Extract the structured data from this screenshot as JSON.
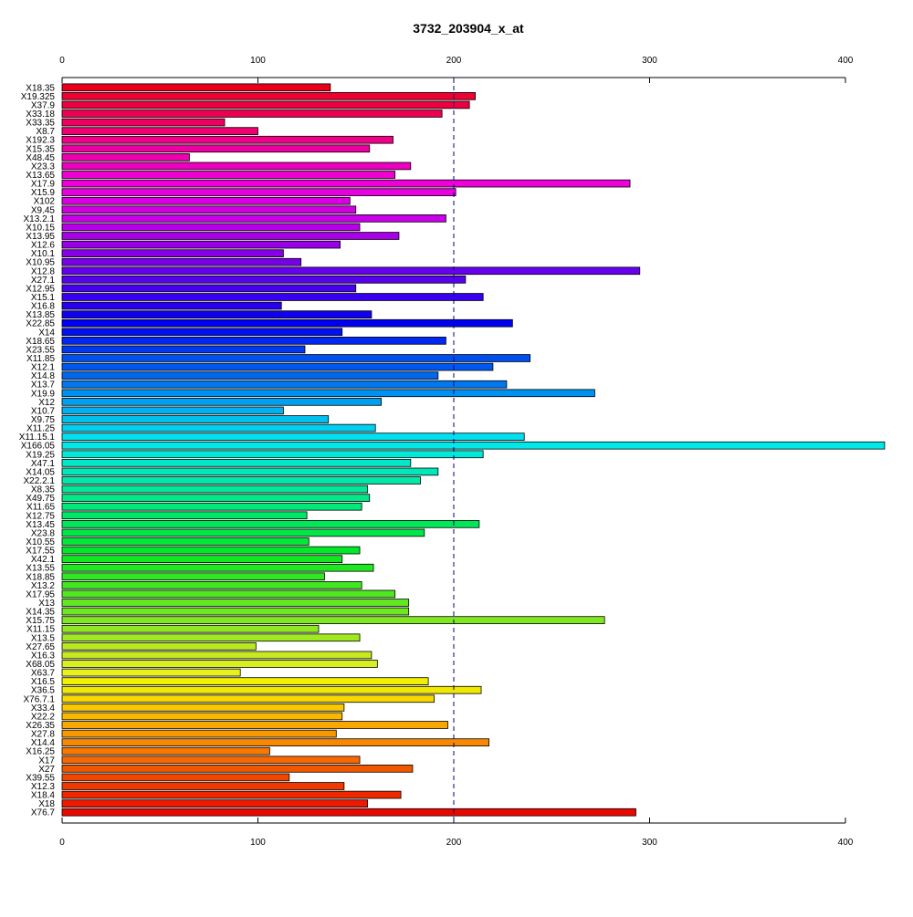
{
  "chart_data": {
    "type": "bar",
    "orientation": "horizontal",
    "title": "3732_203904_x_at",
    "xlabel": "",
    "ylabel": "",
    "xlim": [
      0,
      420
    ],
    "xticks": [
      0,
      100,
      200,
      300,
      400
    ],
    "reference_line": 200,
    "grid": false,
    "categories": [
      "X18.35",
      "X19.325",
      "X37.9",
      "X33.18",
      "X33.35",
      "X8.7",
      "X192.3",
      "X15.35",
      "X48.45",
      "X23.3",
      "X13.65",
      "X17.9",
      "X15.9",
      "X102",
      "X9.45",
      "X13.2.1",
      "X10.15",
      "X13.95",
      "X12.6",
      "X10.1",
      "X10.95",
      "X12.8",
      "X27.1",
      "X12.95",
      "X15.1",
      "X16.8",
      "X13.85",
      "X22.85",
      "X14",
      "X18.65",
      "X23.55",
      "X11.85",
      "X12.1",
      "X14.8",
      "X13.7",
      "X19.9",
      "X12",
      "X10.7",
      "X9.75",
      "X11.25",
      "X11.15.1",
      "X166.05",
      "X19.25",
      "X47.1",
      "X14.05",
      "X22.2.1",
      "X8.35",
      "X49.75",
      "X11.65",
      "X12.75",
      "X13.45",
      "X23.8",
      "X10.55",
      "X17.55",
      "X42.1",
      "X13.55",
      "X18.85",
      "X13.2",
      "X17.95",
      "X13",
      "X14.35",
      "X15.75",
      "X11.15",
      "X13.5",
      "X27.65",
      "X16.3",
      "X68.05",
      "X63.7",
      "X16.5",
      "X36.5",
      "X76.7.1",
      "X33.4",
      "X22.2",
      "X26.35",
      "X27.8",
      "X14.4",
      "X16.25",
      "X17",
      "X27",
      "X39.55",
      "X12.3",
      "X18.4",
      "X18",
      "X76.7"
    ],
    "values": [
      137,
      211,
      208,
      194,
      83,
      100,
      169,
      157,
      65,
      178,
      170,
      290,
      201,
      147,
      150,
      196,
      152,
      172,
      142,
      113,
      122,
      295,
      206,
      150,
      215,
      112,
      158,
      230,
      143,
      196,
      124,
      239,
      220,
      192,
      227,
      272,
      163,
      113,
      136,
      160,
      236,
      420,
      215,
      178,
      192,
      183,
      156,
      157,
      153,
      125,
      213,
      185,
      126,
      152,
      143,
      159,
      134,
      153,
      170,
      177,
      177,
      277,
      131,
      152,
      99,
      158,
      161,
      91,
      187,
      214,
      190,
      144,
      143,
      197,
      140,
      218,
      106,
      152,
      179,
      116,
      144,
      173,
      156,
      293
    ],
    "colors": [
      "#E8001A",
      "#EE0030",
      "#EE0040",
      "#EE0050",
      "#EE0060",
      "#EE0070",
      "#EE0088",
      "#EE00A0",
      "#EE00B0",
      "#EE00C0",
      "#EE00D0",
      "#EE00D8",
      "#E800E0",
      "#D800E0",
      "#D000E0",
      "#C800E8",
      "#B800E8",
      "#A800E8",
      "#9800E8",
      "#8800E8",
      "#7800E8",
      "#6800F0",
      "#5800F0",
      "#4800F0",
      "#3800F0",
      "#2800F0",
      "#1000F0",
      "#0000F0",
      "#0010F0",
      "#0028F0",
      "#0038F0",
      "#0050F0",
      "#0058F0",
      "#0068F0",
      "#0078F0",
      "#0090F0",
      "#00A0F0",
      "#00B0F0",
      "#00C0F0",
      "#00D0F0",
      "#00E0F0",
      "#00E8E8",
      "#00E8D8",
      "#00E8C8",
      "#00E8B8",
      "#00E8A8",
      "#00E898",
      "#00E888",
      "#00E878",
      "#00E868",
      "#00E858",
      "#00E848",
      "#00E838",
      "#00E828",
      "#10E820",
      "#20E820",
      "#30E820",
      "#40E820",
      "#50E820",
      "#60E820",
      "#70E820",
      "#80E820",
      "#90E820",
      "#A0E820",
      "#B8E820",
      "#C8E820",
      "#D8F020",
      "#E8F020",
      "#F0F000",
      "#F0E800",
      "#F8D800",
      "#F8C800",
      "#F8B800",
      "#F8A800",
      "#F89800",
      "#F88800",
      "#F87800",
      "#F86800",
      "#F05800",
      "#F04800",
      "#F03800",
      "#F02800",
      "#F01800",
      "#E80800"
    ]
  }
}
